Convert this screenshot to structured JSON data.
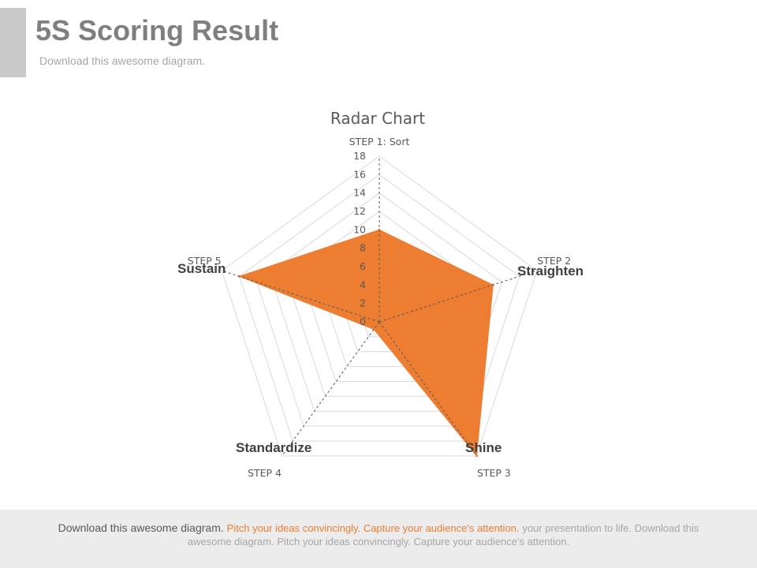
{
  "header": {
    "title": "5S Scoring Result",
    "subtitle": "Download this awesome diagram."
  },
  "step_labels": [
    "Straighten",
    "Shine",
    "Standardize",
    "Sustain"
  ],
  "footer": {
    "lead": "Download this awesome diagram.",
    "highlight": "Pitch your ideas convincingly. Capture your audience's attention.",
    "rest": "your presentation to life. Download this",
    "line2": "awesome diagram. Pitch your ideas convincingly. Capture your audience's attention."
  },
  "colors": {
    "fill": "#ed7d31",
    "grid": "#d9d9d9",
    "axis": "#595959",
    "title": "#595959",
    "ticks": "#595959"
  },
  "chart_data": {
    "type": "radar",
    "title": "Radar Chart",
    "categories": [
      "STEP 1: Sort",
      "STEP 2",
      "STEP 3",
      "STEP 4",
      "STEP 5"
    ],
    "series": [
      {
        "values": [
          10,
          13,
          18,
          1,
          16
        ]
      }
    ],
    "rlim": [
      0,
      18
    ],
    "ticks": [
      0,
      2,
      4,
      6,
      8,
      10,
      12,
      14,
      16,
      18
    ],
    "grid": true,
    "legend": "none"
  }
}
